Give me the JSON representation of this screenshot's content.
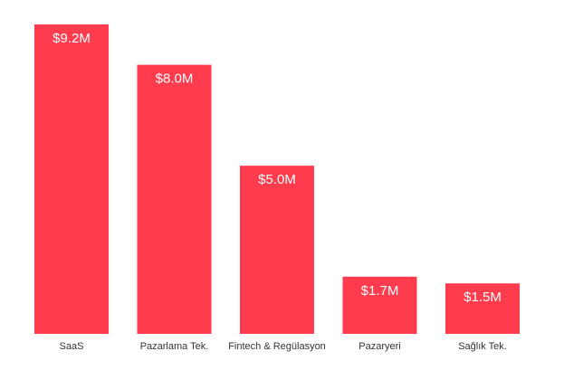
{
  "chart_data": {
    "type": "bar",
    "title": "",
    "xlabel": "",
    "ylabel": "",
    "categories": [
      "SaaS",
      "Pazarlama Tek.",
      "Fintech & Regülasyon",
      "Pazaryeri",
      "Sağlık Tek."
    ],
    "values": [
      9.2,
      8.0,
      5.0,
      1.7,
      1.5
    ],
    "data_labels": [
      "$9.2M",
      "$8.0M",
      "$5.0M",
      "$1.7M",
      "$1.5M"
    ],
    "ylim": [
      0,
      9.2
    ],
    "grid": false,
    "legend": "none",
    "bar_color": "#ff3b4e"
  }
}
